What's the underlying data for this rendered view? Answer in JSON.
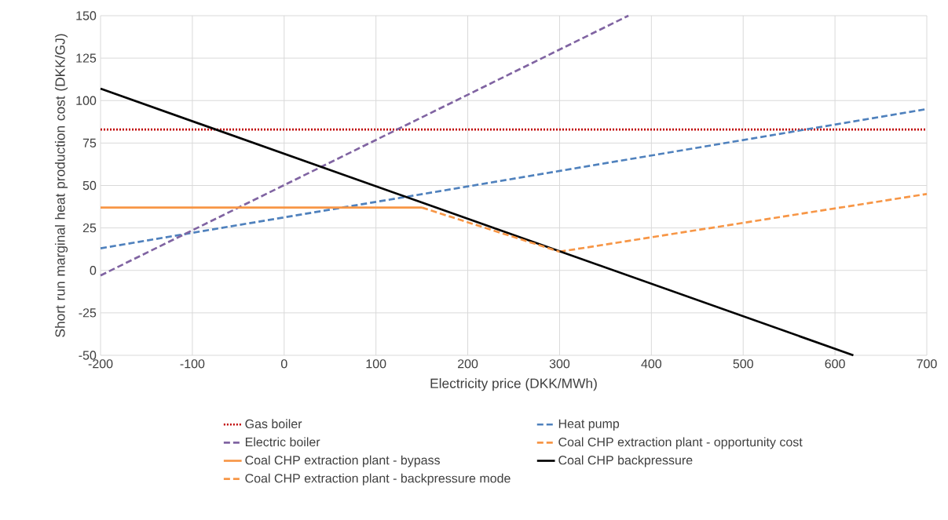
{
  "chart_data": {
    "type": "line",
    "xlabel": "Electricity price (DKK/MWh)",
    "ylabel": "Short run marginal heat production cost (DKK/GJ)",
    "xlim": [
      -200,
      700
    ],
    "xticks": [
      -200,
      -100,
      0,
      100,
      200,
      300,
      400,
      500,
      600,
      700
    ],
    "ylim": [
      -50,
      150
    ],
    "yticks": [
      -50,
      -25,
      0,
      25,
      50,
      75,
      100,
      125,
      150
    ],
    "grid": true,
    "legend": "bottom",
    "marker": "none",
    "series": [
      {
        "name": "Gas boiler",
        "color": "#c00000",
        "line_style": "dotted",
        "x": [
          -200,
          700
        ],
        "values": [
          83,
          83
        ]
      },
      {
        "name": "Heat pump",
        "color": "#4f81bd",
        "line_style": "dashed",
        "x": [
          -200,
          700
        ],
        "values": [
          13,
          95
        ]
      },
      {
        "name": "Electric boiler",
        "color": "#8064a2",
        "line_style": "dashed",
        "x": [
          -200,
          375
        ],
        "values": [
          -3,
          150
        ]
      },
      {
        "name": "Coal CHP extraction plant - opportunity cost",
        "color": "#f79646",
        "line_style": "dashed",
        "x": [
          300,
          700
        ],
        "values": [
          11,
          45
        ]
      },
      {
        "name": "Coal CHP extraction plant - bypass",
        "color": "#f79646",
        "line_style": "solid",
        "x": [
          -200,
          150
        ],
        "values": [
          37,
          37
        ]
      },
      {
        "name": "Coal CHP backpressure",
        "color": "#000000",
        "line_style": "solid",
        "x": [
          -200,
          620
        ],
        "values": [
          107,
          -50
        ]
      },
      {
        "name": "Coal CHP extraction plant - backpressure mode",
        "color": "#f79646",
        "line_style": "dashed",
        "x": [
          150,
          300
        ],
        "values": [
          37,
          11
        ]
      }
    ]
  }
}
